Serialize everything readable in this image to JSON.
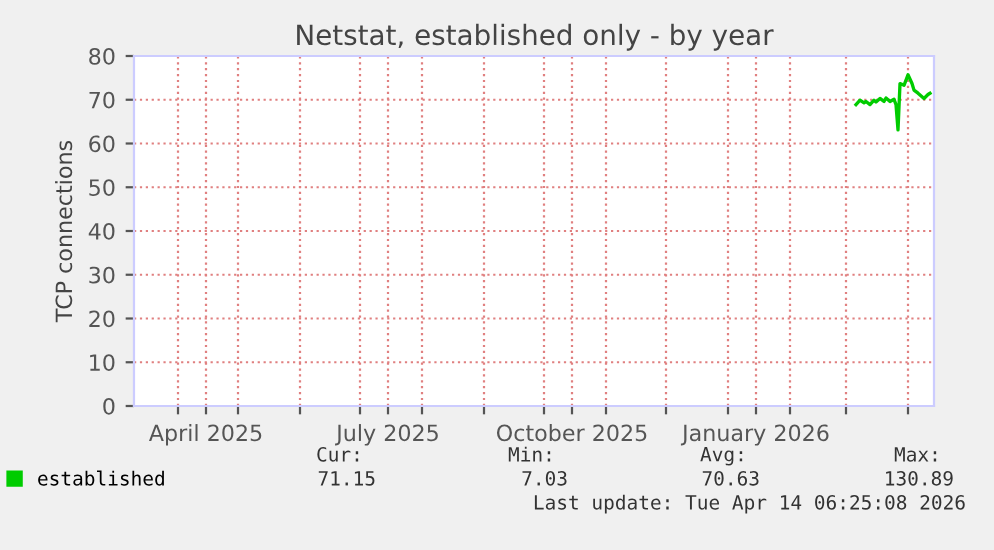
{
  "chart_data": {
    "type": "line",
    "title": "Netstat, established only - by year",
    "ylabel": "TCP connections",
    "x": [
      "2026-03-06",
      "2026-03-08",
      "2026-03-10",
      "2026-03-11",
      "2026-03-13",
      "2026-03-15",
      "2026-03-16",
      "2026-03-18",
      "2026-03-20",
      "2026-03-21",
      "2026-03-23",
      "2026-03-25",
      "2026-03-26",
      "2026-03-27",
      "2026-03-28",
      "2026-03-30",
      "2026-03-31",
      "2026-04-01",
      "2026-04-03",
      "2026-04-04",
      "2026-04-06",
      "2026-04-08",
      "2026-04-09",
      "2026-04-11",
      "2026-04-12"
    ],
    "series": [
      {
        "name": "established",
        "color": "#00cc00",
        "values": [
          68.9,
          69.9,
          69.3,
          69.6,
          68.9,
          69.9,
          69.5,
          70.3,
          69.6,
          70.4,
          69.6,
          70.1,
          68.9,
          63.1,
          73.7,
          73.3,
          74.5,
          75.7,
          73.7,
          72.2,
          71.5,
          70.7,
          70.3,
          71.2,
          71.5
        ]
      }
    ],
    "xlim": [
      "2025-03-10",
      "2026-04-14"
    ],
    "xticks": [
      {
        "value": "2025-04-01",
        "label": null
      },
      {
        "value": "2025-04-15",
        "label": "April 2025"
      },
      {
        "value": "2025-05-01",
        "label": null
      },
      {
        "value": "2025-06-01",
        "label": null
      },
      {
        "value": "2025-07-01",
        "label": null
      },
      {
        "value": "2025-07-15",
        "label": "July 2025"
      },
      {
        "value": "2025-08-01",
        "label": null
      },
      {
        "value": "2025-09-01",
        "label": null
      },
      {
        "value": "2025-10-01",
        "label": null
      },
      {
        "value": "2025-10-15",
        "label": "October 2025"
      },
      {
        "value": "2025-11-01",
        "label": null
      },
      {
        "value": "2025-12-01",
        "label": null
      },
      {
        "value": "2026-01-01",
        "label": null
      },
      {
        "value": "2026-01-15",
        "label": "January 2026"
      },
      {
        "value": "2026-02-01",
        "label": null
      },
      {
        "value": "2026-03-01",
        "label": null
      },
      {
        "value": "2026-04-01",
        "label": null
      }
    ],
    "ylim": [
      0,
      80
    ],
    "yticks": [
      0,
      10,
      20,
      30,
      40,
      50,
      60,
      70,
      80
    ],
    "grid": true,
    "legend": "bottom left",
    "marker": "none",
    "line_style": "solid",
    "annotations": [
      "Cur:",
      "Min:",
      "Avg:",
      "Max:",
      "71.15",
      "7.03",
      "70.63",
      "130.89",
      "Last update: Tue Apr 14 06:25:08 2026"
    ]
  }
}
